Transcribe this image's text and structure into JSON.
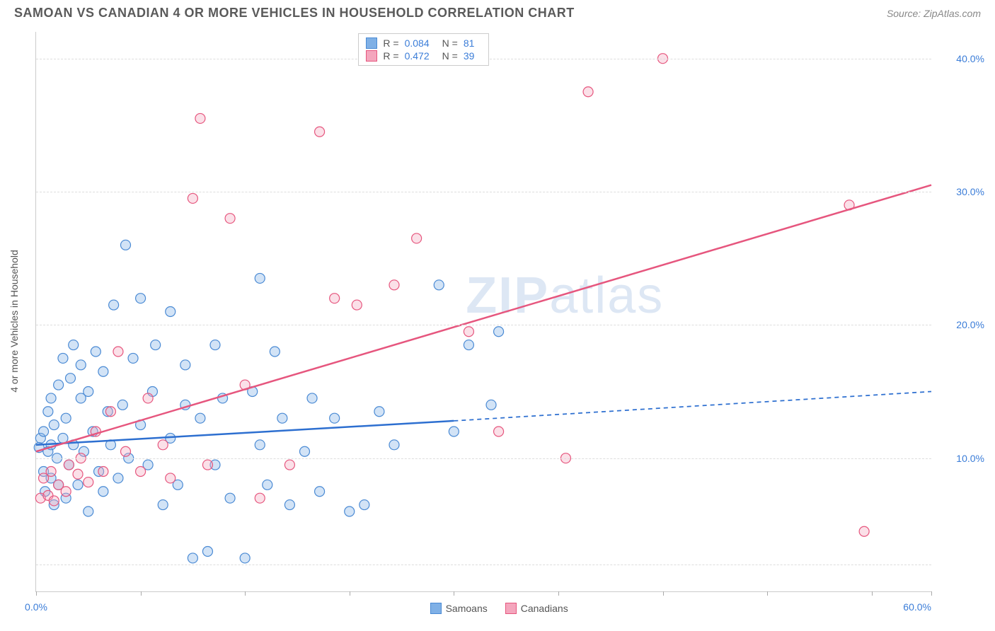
{
  "title": "SAMOAN VS CANADIAN 4 OR MORE VEHICLES IN HOUSEHOLD CORRELATION CHART",
  "source": "Source: ZipAtlas.com",
  "y_axis_label": "4 or more Vehicles in Household",
  "watermark_bold": "ZIP",
  "watermark_rest": "atlas",
  "chart": {
    "type": "scatter-correlation",
    "xlim": [
      0,
      60
    ],
    "ylim": [
      0,
      42
    ],
    "x_ticks": [
      0,
      7,
      14,
      21,
      28,
      35,
      42,
      49,
      56,
      60
    ],
    "x_tick_labels_shown": {
      "0": "0.0%",
      "60": "60.0%"
    },
    "y_gridlines": [
      2,
      10,
      20,
      30,
      40
    ],
    "y_tick_labels": {
      "10": "10.0%",
      "20": "20.0%",
      "30": "30.0%",
      "40": "40.0%"
    },
    "background_color": "#ffffff",
    "grid_color": "#dddddd",
    "marker_radius": 7,
    "marker_fill_opacity": 0.35,
    "marker_stroke_width": 1.2,
    "series": [
      {
        "name": "Samoans",
        "color_fill": "#7fb0e6",
        "color_stroke": "#4a8ad4",
        "R": "0.084",
        "N": "81",
        "trend": {
          "solid": {
            "x1": 0,
            "y1": 11.0,
            "x2": 28,
            "y2": 12.8
          },
          "dashed": {
            "x1": 28,
            "y1": 12.8,
            "x2": 60,
            "y2": 15.0
          },
          "stroke": "#2d6fd0",
          "width": 2.5
        },
        "points": [
          [
            0.2,
            10.8
          ],
          [
            0.3,
            11.5
          ],
          [
            0.5,
            9.0
          ],
          [
            0.5,
            12.0
          ],
          [
            0.6,
            7.5
          ],
          [
            0.8,
            10.5
          ],
          [
            0.8,
            13.5
          ],
          [
            1.0,
            8.5
          ],
          [
            1.0,
            11.0
          ],
          [
            1.0,
            14.5
          ],
          [
            1.2,
            6.5
          ],
          [
            1.2,
            12.5
          ],
          [
            1.4,
            10.0
          ],
          [
            1.5,
            15.5
          ],
          [
            1.5,
            8.0
          ],
          [
            1.8,
            11.5
          ],
          [
            1.8,
            17.5
          ],
          [
            2.0,
            7.0
          ],
          [
            2.0,
            13.0
          ],
          [
            2.2,
            9.5
          ],
          [
            2.3,
            16.0
          ],
          [
            2.5,
            11.0
          ],
          [
            2.5,
            18.5
          ],
          [
            2.8,
            8.0
          ],
          [
            3.0,
            14.5
          ],
          [
            3.0,
            17.0
          ],
          [
            3.2,
            10.5
          ],
          [
            3.5,
            15.0
          ],
          [
            3.5,
            6.0
          ],
          [
            3.8,
            12.0
          ],
          [
            4.0,
            18.0
          ],
          [
            4.2,
            9.0
          ],
          [
            4.5,
            16.5
          ],
          [
            4.5,
            7.5
          ],
          [
            4.8,
            13.5
          ],
          [
            5.0,
            11.0
          ],
          [
            5.2,
            21.5
          ],
          [
            5.5,
            8.5
          ],
          [
            5.8,
            14.0
          ],
          [
            6.0,
            26.0
          ],
          [
            6.2,
            10.0
          ],
          [
            6.5,
            17.5
          ],
          [
            7.0,
            22.0
          ],
          [
            7.0,
            12.5
          ],
          [
            7.5,
            9.5
          ],
          [
            7.8,
            15.0
          ],
          [
            8.0,
            18.5
          ],
          [
            8.5,
            6.5
          ],
          [
            9.0,
            11.5
          ],
          [
            9.0,
            21.0
          ],
          [
            9.5,
            8.0
          ],
          [
            10.0,
            14.0
          ],
          [
            10.0,
            17.0
          ],
          [
            10.5,
            2.5
          ],
          [
            11.0,
            13.0
          ],
          [
            11.5,
            3.0
          ],
          [
            12.0,
            18.5
          ],
          [
            12.0,
            9.5
          ],
          [
            12.5,
            14.5
          ],
          [
            13.0,
            7.0
          ],
          [
            14.0,
            2.5
          ],
          [
            14.5,
            15.0
          ],
          [
            15.0,
            11.0
          ],
          [
            15.0,
            23.5
          ],
          [
            15.5,
            8.0
          ],
          [
            16.0,
            18.0
          ],
          [
            16.5,
            13.0
          ],
          [
            17.0,
            6.5
          ],
          [
            18.0,
            10.5
          ],
          [
            18.5,
            14.5
          ],
          [
            19.0,
            7.5
          ],
          [
            20.0,
            13.0
          ],
          [
            21.0,
            6.0
          ],
          [
            22.0,
            6.5
          ],
          [
            23.0,
            13.5
          ],
          [
            24.0,
            11.0
          ],
          [
            27.0,
            23.0
          ],
          [
            28.0,
            12.0
          ],
          [
            29.0,
            18.5
          ],
          [
            30.5,
            14.0
          ],
          [
            31.0,
            19.5
          ]
        ]
      },
      {
        "name": "Canadians",
        "color_fill": "#f4a6bd",
        "color_stroke": "#e6567e",
        "R": "0.472",
        "N": "39",
        "trend": {
          "solid": {
            "x1": 0,
            "y1": 10.5,
            "x2": 60,
            "y2": 30.5
          },
          "stroke": "#e6567e",
          "width": 2.5
        },
        "points": [
          [
            0.3,
            7.0
          ],
          [
            0.5,
            8.5
          ],
          [
            0.8,
            7.2
          ],
          [
            1.0,
            9.0
          ],
          [
            1.2,
            6.8
          ],
          [
            1.5,
            8.0
          ],
          [
            2.0,
            7.5
          ],
          [
            2.2,
            9.5
          ],
          [
            2.8,
            8.8
          ],
          [
            3.0,
            10.0
          ],
          [
            3.5,
            8.2
          ],
          [
            4.0,
            12.0
          ],
          [
            4.5,
            9.0
          ],
          [
            5.0,
            13.5
          ],
          [
            5.5,
            18.0
          ],
          [
            6.0,
            10.5
          ],
          [
            7.0,
            9.0
          ],
          [
            7.5,
            14.5
          ],
          [
            8.5,
            11.0
          ],
          [
            9.0,
            8.5
          ],
          [
            10.5,
            29.5
          ],
          [
            11.0,
            35.5
          ],
          [
            11.5,
            9.5
          ],
          [
            13.0,
            28.0
          ],
          [
            14.0,
            15.5
          ],
          [
            15.0,
            7.0
          ],
          [
            17.0,
            9.5
          ],
          [
            19.0,
            34.5
          ],
          [
            20.0,
            22.0
          ],
          [
            21.5,
            21.5
          ],
          [
            24.0,
            23.0
          ],
          [
            25.5,
            26.5
          ],
          [
            29.0,
            19.5
          ],
          [
            31.0,
            12.0
          ],
          [
            35.5,
            10.0
          ],
          [
            37.0,
            37.5
          ],
          [
            42.0,
            40.0
          ],
          [
            54.5,
            29.0
          ],
          [
            55.5,
            4.5
          ]
        ]
      }
    ]
  },
  "legend_bottom": [
    {
      "label": "Samoans",
      "fill": "#7fb0e6",
      "stroke": "#4a8ad4"
    },
    {
      "label": "Canadians",
      "fill": "#f4a6bd",
      "stroke": "#e6567e"
    }
  ]
}
